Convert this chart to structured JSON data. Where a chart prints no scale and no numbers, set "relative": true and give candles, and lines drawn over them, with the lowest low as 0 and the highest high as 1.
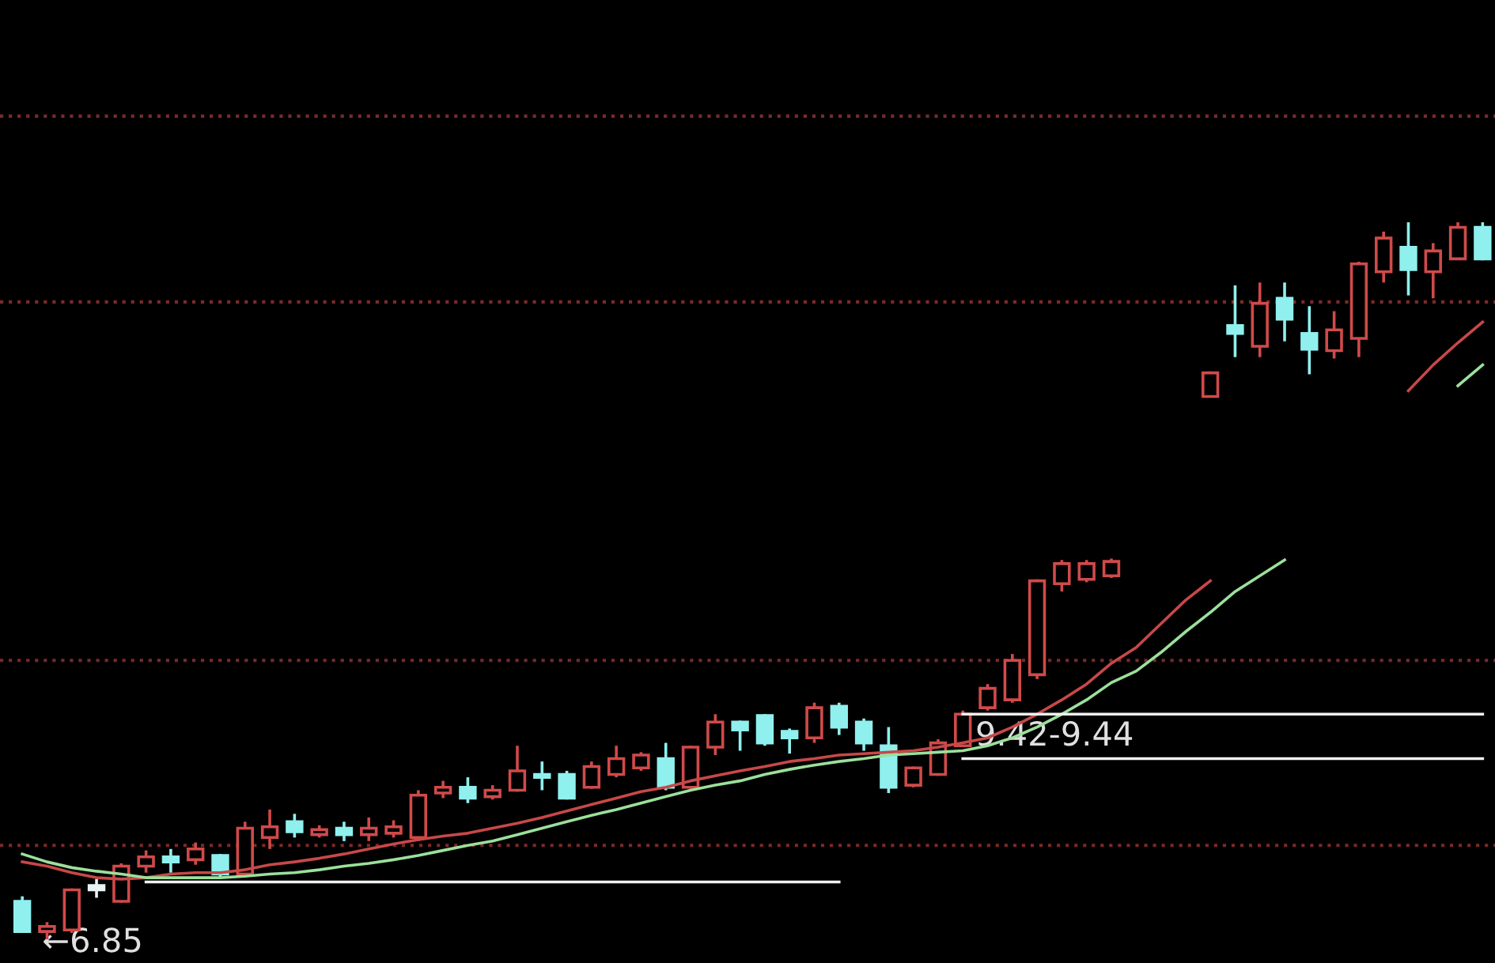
{
  "chart_data": {
    "type": "candlestick",
    "relative": true,
    "categories": [
      null,
      null,
      null,
      null,
      null,
      null,
      null,
      null,
      null,
      null,
      null,
      null,
      null,
      null,
      null,
      null,
      null,
      null,
      null,
      null,
      null,
      null,
      null,
      null,
      null,
      null,
      null,
      null,
      null,
      null,
      null,
      null,
      null,
      null,
      null,
      null,
      null,
      null,
      null,
      null,
      null,
      null,
      null,
      null,
      null,
      null,
      null,
      null,
      null,
      null,
      null,
      null,
      null,
      null,
      null,
      null,
      null,
      null,
      null,
      null
    ],
    "ohlc": [
      [
        0.053,
        0.06,
        0.009,
        0.011
      ],
      [
        0.011,
        0.024,
        0.0,
        0.018
      ],
      [
        0.013,
        0.071,
        0.009,
        0.069
      ],
      [
        0.075,
        0.084,
        0.058,
        0.069
      ],
      [
        0.053,
        0.106,
        0.051,
        0.102
      ],
      [
        0.102,
        0.124,
        0.093,
        0.115
      ],
      [
        0.115,
        0.126,
        0.093,
        0.108
      ],
      [
        0.111,
        0.135,
        0.104,
        0.126
      ],
      [
        0.117,
        0.119,
        0.084,
        0.091
      ],
      [
        0.091,
        0.164,
        0.088,
        0.155
      ],
      [
        0.142,
        0.181,
        0.126,
        0.157
      ],
      [
        0.164,
        0.175,
        0.142,
        0.15
      ],
      [
        0.146,
        0.159,
        0.142,
        0.153
      ],
      [
        0.155,
        0.164,
        0.137,
        0.146
      ],
      [
        0.146,
        0.17,
        0.137,
        0.155
      ],
      [
        0.148,
        0.166,
        0.142,
        0.157
      ],
      [
        0.142,
        0.208,
        0.137,
        0.201
      ],
      [
        0.204,
        0.221,
        0.197,
        0.212
      ],
      [
        0.212,
        0.226,
        0.19,
        0.197
      ],
      [
        0.199,
        0.215,
        0.195,
        0.208
      ],
      [
        0.208,
        0.27,
        0.206,
        0.235
      ],
      [
        0.23,
        0.248,
        0.208,
        0.226
      ],
      [
        0.23,
        0.235,
        0.195,
        0.197
      ],
      [
        0.212,
        0.248,
        0.21,
        0.241
      ],
      [
        0.23,
        0.27,
        0.226,
        0.252
      ],
      [
        0.239,
        0.261,
        0.235,
        0.257
      ],
      [
        0.252,
        0.274,
        0.208,
        0.212
      ],
      [
        0.212,
        0.27,
        0.21,
        0.268
      ],
      [
        0.268,
        0.314,
        0.257,
        0.303
      ],
      [
        0.303,
        0.305,
        0.263,
        0.292
      ],
      [
        0.312,
        0.314,
        0.27,
        0.274
      ],
      [
        0.29,
        0.294,
        0.259,
        0.281
      ],
      [
        0.281,
        0.33,
        0.274,
        0.323
      ],
      [
        0.325,
        0.33,
        0.285,
        0.296
      ],
      [
        0.303,
        0.308,
        0.263,
        0.274
      ],
      [
        0.27,
        0.296,
        0.204,
        0.212
      ],
      [
        0.215,
        0.241,
        0.212,
        0.239
      ],
      [
        0.23,
        0.279,
        0.228,
        0.274
      ],
      [
        0.27,
        0.319,
        0.268,
        0.314
      ],
      [
        0.323,
        0.356,
        0.319,
        0.35
      ],
      [
        0.334,
        0.398,
        0.33,
        0.389
      ],
      [
        0.369,
        0.502,
        0.363,
        0.5
      ],
      [
        0.496,
        0.529,
        0.485,
        0.524
      ],
      [
        0.502,
        0.529,
        0.498,
        0.524
      ],
      [
        0.507,
        0.531,
        0.504,
        0.527
      ],
      null,
      null,
      null,
      [
        0.757,
        0.792,
        0.757,
        0.79
      ],
      [
        0.856,
        0.912,
        0.812,
        0.845
      ],
      [
        0.827,
        0.916,
        0.812,
        0.887
      ],
      [
        0.894,
        0.916,
        0.834,
        0.865
      ],
      [
        0.845,
        0.883,
        0.788,
        0.823
      ],
      [
        0.821,
        0.876,
        0.81,
        0.85
      ],
      [
        0.838,
        0.945,
        0.812,
        0.942
      ],
      [
        0.931,
        0.987,
        0.916,
        0.978
      ],
      [
        0.965,
        1.0,
        0.898,
        0.934
      ],
      [
        0.931,
        0.971,
        0.894,
        0.96
      ],
      [
        0.949,
        1.0,
        0.949,
        0.993
      ],
      [
        0.993,
        1.0,
        0.947,
        0.949
      ]
    ],
    "colors": [
      "#8ff0ee",
      "#d04a4a",
      "#d04a4a",
      "#e8f4f4",
      "#d04a4a",
      "#d04a4a",
      "#8ff0ee",
      "#d04a4a",
      "#8ff0ee",
      "#d04a4a",
      "#d04a4a",
      "#8ff0ee",
      "#d04a4a",
      "#8ff0ee",
      "#d04a4a",
      "#d04a4a",
      "#d04a4a",
      "#d04a4a",
      "#8ff0ee",
      "#d04a4a",
      "#d04a4a",
      "#8ff0ee",
      "#8ff0ee",
      "#d04a4a",
      "#d04a4a",
      "#d04a4a",
      "#8ff0ee",
      "#d04a4a",
      "#d04a4a",
      "#8ff0ee",
      "#8ff0ee",
      "#8ff0ee",
      "#d04a4a",
      "#8ff0ee",
      "#8ff0ee",
      "#8ff0ee",
      "#d04a4a",
      "#d04a4a",
      "#d04a4a",
      "#d04a4a",
      "#d04a4a",
      "#d04a4a",
      "#d04a4a",
      "#d04a4a",
      "#d04a4a",
      null,
      null,
      null,
      "#d04a4a",
      "#8ff0ee",
      "#d04a4a",
      "#8ff0ee",
      "#8ff0ee",
      "#d04a4a",
      "#d04a4a",
      "#d04a4a",
      "#8ff0ee",
      "#d04a4a",
      "#d04a4a",
      "#8ff0ee"
    ],
    "series": [
      {
        "type": "line",
        "color": "#c84848",
        "values": [
          0.108,
          0.102,
          0.093,
          0.086,
          0.084,
          0.086,
          0.091,
          0.093,
          0.093,
          0.097,
          0.104,
          0.108,
          0.113,
          0.119,
          0.126,
          0.133,
          0.139,
          0.144,
          0.148,
          0.155,
          0.162,
          0.17,
          0.179,
          0.188,
          0.197,
          0.206,
          0.212,
          0.221,
          0.228,
          0.235,
          0.241,
          0.248,
          0.252,
          0.257,
          0.259,
          0.261,
          0.263,
          0.268,
          0.274,
          0.281,
          0.296,
          0.314,
          0.334,
          0.356,
          0.385,
          0.407,
          0.44,
          0.473,
          0.5,
          null,
          null,
          null,
          null,
          null,
          null,
          null,
          0.765,
          0.801,
          0.832,
          0.861
        ]
      },
      {
        "type": "line",
        "color": "#9be09b",
        "values": [
          0.119,
          0.108,
          0.1,
          0.095,
          0.091,
          0.086,
          0.086,
          0.086,
          0.086,
          0.088,
          0.091,
          0.093,
          0.097,
          0.102,
          0.106,
          0.111,
          0.117,
          0.124,
          0.131,
          0.137,
          0.146,
          0.155,
          0.164,
          0.173,
          0.181,
          0.19,
          0.199,
          0.208,
          0.215,
          0.221,
          0.23,
          0.237,
          0.243,
          0.248,
          0.252,
          0.257,
          0.259,
          0.261,
          0.263,
          0.27,
          0.281,
          0.296,
          0.314,
          0.334,
          0.358,
          0.374,
          0.4,
          0.429,
          0.456,
          0.485,
          0.507,
          0.529,
          null,
          null,
          null,
          null,
          null,
          null,
          0.772,
          0.801
        ]
      },
      {
        "type": "line",
        "color": "#f0f0f0",
        "values": [
          null,
          null,
          null,
          null,
          null,
          0.08,
          0.08,
          0.08,
          0.08,
          0.08,
          0.08,
          0.08,
          0.08,
          0.08,
          0.08,
          0.08,
          0.08,
          0.08,
          0.08,
          0.08,
          0.08,
          0.08,
          0.08,
          0.08,
          0.08,
          0.08,
          0.08,
          0.08,
          0.08,
          0.08,
          0.08,
          0.08,
          0.08,
          0.08,
          null,
          null,
          null,
          null,
          null,
          null,
          null,
          null,
          null,
          null,
          null,
          null,
          null,
          null,
          null,
          null,
          null,
          null,
          null,
          null,
          null,
          null,
          null,
          null,
          null,
          null
        ]
      },
      {
        "type": "line",
        "color": "#f0f0f0",
        "values": [
          null,
          null,
          null,
          null,
          null,
          null,
          null,
          null,
          null,
          null,
          null,
          null,
          null,
          null,
          null,
          null,
          null,
          null,
          null,
          null,
          null,
          null,
          null,
          null,
          null,
          null,
          null,
          null,
          null,
          null,
          null,
          null,
          null,
          null,
          null,
          null,
          null,
          null,
          0.314,
          0.314,
          0.314,
          0.314,
          0.314,
          0.314,
          0.314,
          0.314,
          0.314,
          0.314,
          0.314,
          0.314,
          0.314,
          0.314,
          0.314,
          0.314,
          0.314,
          0.314,
          0.314,
          0.314,
          0.314,
          0.314
        ]
      },
      {
        "type": "line",
        "color": "#f0f0f0",
        "values": [
          null,
          null,
          null,
          null,
          null,
          null,
          null,
          null,
          null,
          null,
          null,
          null,
          null,
          null,
          null,
          null,
          null,
          null,
          null,
          null,
          null,
          null,
          null,
          null,
          null,
          null,
          null,
          null,
          null,
          null,
          null,
          null,
          null,
          null,
          null,
          null,
          null,
          null,
          0.252,
          0.252,
          0.252,
          0.252,
          0.252,
          0.252,
          0.252,
          0.252,
          0.252,
          0.252,
          0.252,
          0.252,
          0.252,
          0.252,
          0.252,
          0.252,
          0.252,
          0.252,
          0.252,
          0.252,
          0.252,
          0.252
        ]
      }
    ],
    "ref_lines": [
      {
        "axis": "y",
        "value": 1.148,
        "color": "#7a2a2a",
        "line_style": "dotted"
      },
      {
        "axis": "y",
        "value": 0.889,
        "color": "#7a2a2a",
        "line_style": "dotted"
      },
      {
        "axis": "y",
        "value": 0.389,
        "color": "#7a2a2a",
        "line_style": "dotted"
      },
      {
        "axis": "y",
        "value": 0.131,
        "color": "#7a2a2a",
        "line_style": "dotted"
      }
    ],
    "annotations": [
      "←6.85",
      "9.42-9.44"
    ]
  }
}
